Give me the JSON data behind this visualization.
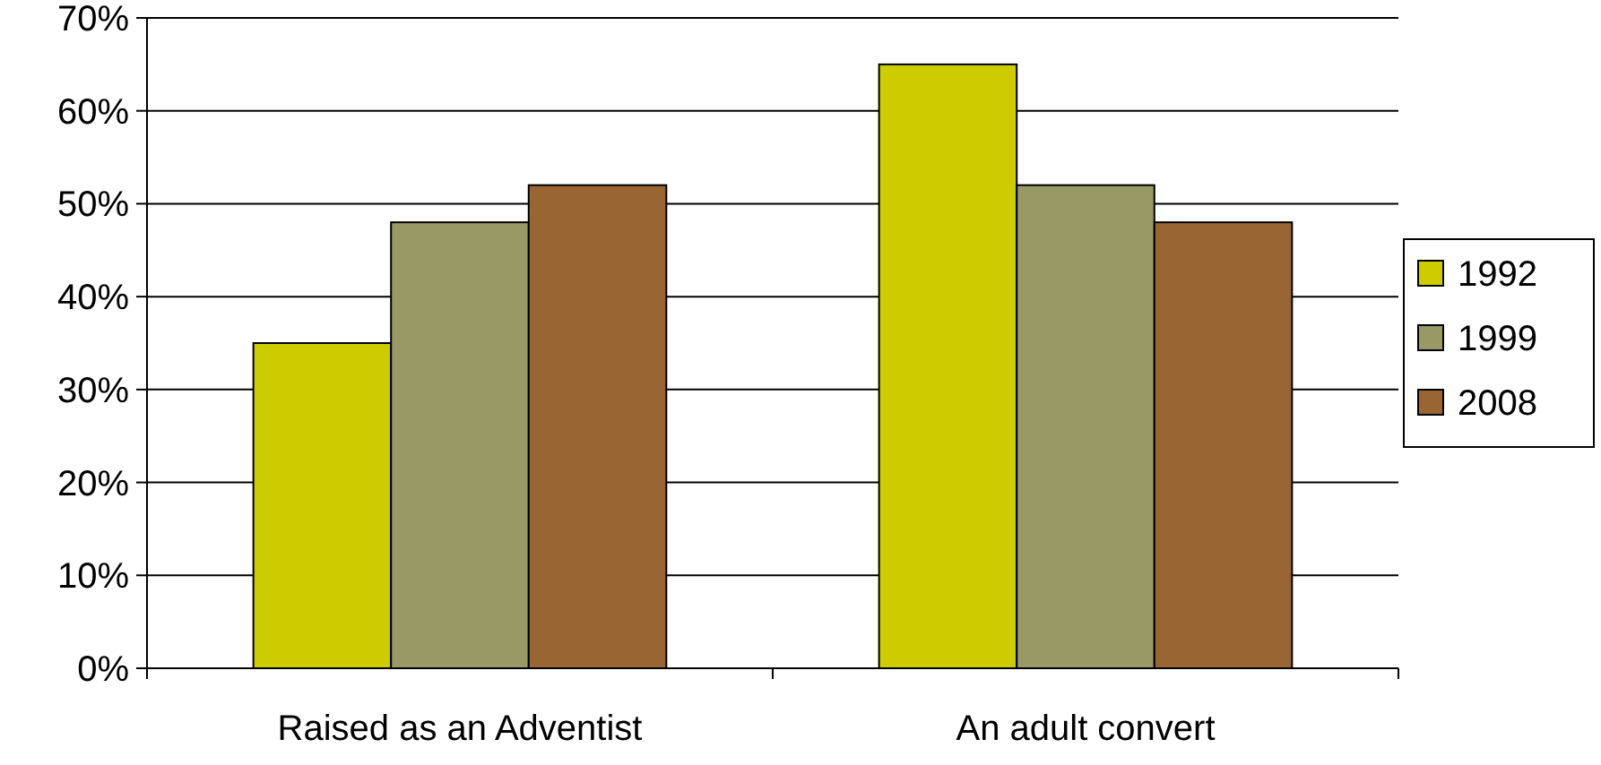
{
  "chart_data": {
    "type": "bar",
    "categories": [
      "Raised as an Adventist",
      "An adult convert"
    ],
    "series": [
      {
        "name": "1992",
        "color": "#cccc00",
        "values": [
          35,
          65
        ]
      },
      {
        "name": "1999",
        "color": "#999966",
        "values": [
          48,
          52
        ]
      },
      {
        "name": "2008",
        "color": "#996633",
        "values": [
          52,
          48
        ]
      }
    ],
    "ylim": [
      0,
      70
    ],
    "yticks": [
      {
        "value": 0,
        "label": "0%"
      },
      {
        "value": 10,
        "label": "10%"
      },
      {
        "value": 20,
        "label": "20%"
      },
      {
        "value": 30,
        "label": "30%"
      },
      {
        "value": 40,
        "label": "40%"
      },
      {
        "value": 50,
        "label": "50%"
      },
      {
        "value": 60,
        "label": "60%"
      },
      {
        "value": 70,
        "label": "70%"
      }
    ],
    "grid": "y",
    "legend": "right"
  }
}
